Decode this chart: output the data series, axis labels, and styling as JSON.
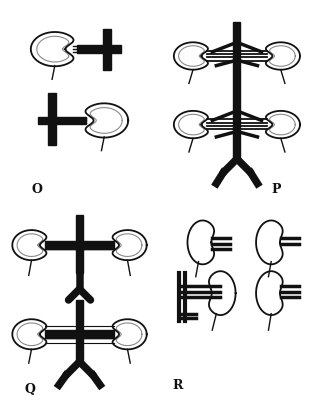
{
  "background": "#ffffff",
  "label_O": "O",
  "label_P": "P",
  "label_Q": "Q",
  "label_R": "R",
  "label_fontsize": 9,
  "line_color": "#111111",
  "thick_lw": 6,
  "med_lw": 2.5,
  "thin_lw": 1.0,
  "kidney_color": "#ffffff",
  "kidney_edge": "#111111",
  "kidney_lw": 1.3
}
